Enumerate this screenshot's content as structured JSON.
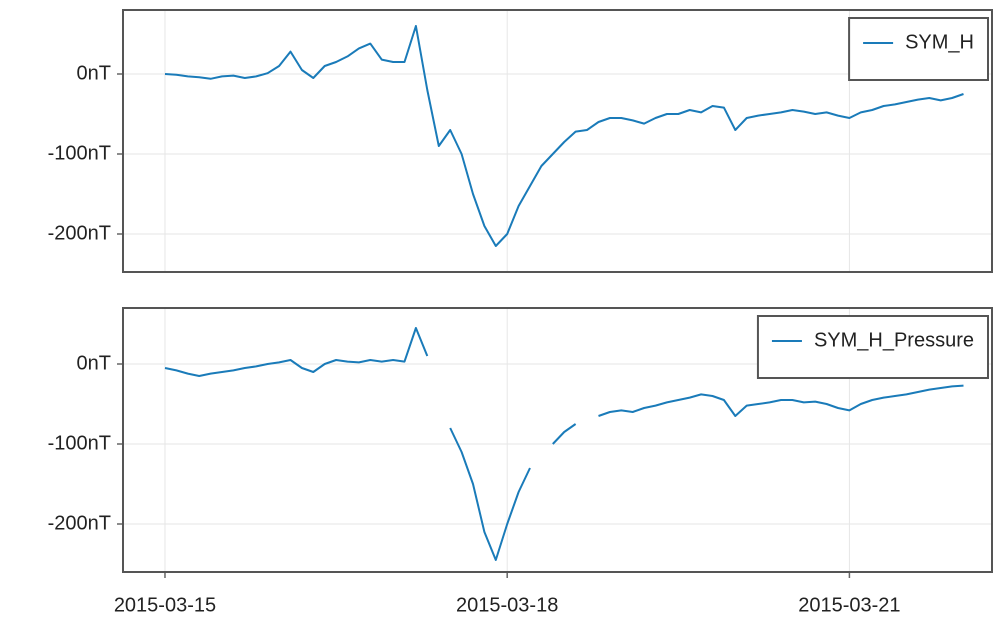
{
  "chart_data": [
    {
      "type": "line",
      "x": [
        0,
        0.1,
        0.2,
        0.3,
        0.4,
        0.5,
        0.6,
        0.7,
        0.8,
        0.9,
        1,
        1.1,
        1.2,
        1.3,
        1.4,
        1.5,
        1.6,
        1.7,
        1.8,
        1.9,
        2,
        2.1,
        2.2,
        2.3,
        2.4,
        2.5,
        2.6,
        2.7,
        2.8,
        2.9,
        3,
        3.1,
        3.2,
        3.3,
        3.4,
        3.5,
        3.6,
        3.7,
        3.8,
        3.9,
        4,
        4.1,
        4.2,
        4.3,
        4.4,
        4.5,
        4.6,
        4.7,
        4.8,
        4.9,
        5,
        5.1,
        5.2,
        5.3,
        5.4,
        5.5,
        5.6,
        5.7,
        5.8,
        5.9,
        6,
        6.1,
        6.2,
        6.3,
        6.4,
        6.5,
        6.6,
        6.7,
        6.8,
        6.9,
        7
      ],
      "series": [
        {
          "name": "SYM_H",
          "color": "#1a7bb9",
          "values": [
            0,
            -1,
            -3,
            -4,
            -6,
            -3,
            -2,
            -5,
            -3,
            1,
            10,
            28,
            5,
            -5,
            10,
            15,
            22,
            32,
            38,
            18,
            15,
            15,
            60,
            -20,
            -90,
            -70,
            -100,
            -150,
            -190,
            -215,
            -200,
            -165,
            -140,
            -115,
            -100,
            -85,
            -72,
            -70,
            -60,
            -55,
            -55,
            -58,
            -62,
            -55,
            -50,
            -50,
            -45,
            -48,
            -40,
            -42,
            -70,
            -55,
            -52,
            -50,
            -48,
            -45,
            -47,
            -50,
            -48,
            -52,
            -55,
            -48,
            -45,
            -40,
            -38,
            -35,
            -32,
            -30,
            -33,
            -30,
            -25
          ]
        }
      ],
      "xlim": [
        -0.368,
        7.25
      ],
      "xticks": [
        0,
        3,
        6
      ],
      "ylim": [
        -247.5,
        80
      ],
      "yticks": [
        {
          "value": 0,
          "label": "0nT"
        },
        {
          "value": -100,
          "label": "-100nT"
        },
        {
          "value": -200,
          "label": "-200nT"
        }
      ],
      "grid": true,
      "legend": "top right"
    },
    {
      "type": "line",
      "x": [
        0,
        0.1,
        0.2,
        0.3,
        0.4,
        0.5,
        0.6,
        0.7,
        0.8,
        0.9,
        1,
        1.1,
        1.2,
        1.3,
        1.4,
        1.5,
        1.6,
        1.7,
        1.8,
        1.9,
        2,
        2.1,
        2.2,
        2.3,
        2.4,
        2.5,
        2.6,
        2.7,
        2.8,
        2.9,
        3,
        3.1,
        3.2,
        3.3,
        3.4,
        3.5,
        3.6,
        3.7,
        3.8,
        3.9,
        4,
        4.1,
        4.2,
        4.3,
        4.4,
        4.5,
        4.6,
        4.7,
        4.8,
        4.9,
        5,
        5.1,
        5.2,
        5.3,
        5.4,
        5.5,
        5.6,
        5.7,
        5.8,
        5.9,
        6,
        6.1,
        6.2,
        6.3,
        6.4,
        6.5,
        6.6,
        6.7,
        6.8,
        6.9,
        7
      ],
      "series": [
        {
          "name": "SYM_H_Pressure",
          "color": "#1a7bb9",
          "values": [
            -5,
            -8,
            -12,
            -15,
            -12,
            -10,
            -8,
            -5,
            -3,
            0,
            2,
            5,
            -5,
            -10,
            0,
            5,
            3,
            2,
            5,
            3,
            5,
            3,
            45,
            10,
            null,
            -80,
            -110,
            -150,
            -210,
            -245,
            -200,
            -160,
            -130,
            null,
            -100,
            -85,
            -75,
            null,
            -65,
            -60,
            -58,
            -60,
            -55,
            -52,
            -48,
            -45,
            -42,
            -38,
            -40,
            -45,
            -65,
            -52,
            -50,
            -48,
            -45,
            -45,
            -48,
            -47,
            -50,
            -55,
            -58,
            -50,
            -45,
            -42,
            -40,
            -38,
            -35,
            -32,
            -30,
            -28,
            -27
          ]
        }
      ],
      "xlim": [
        -0.368,
        7.25
      ],
      "xticks": [
        {
          "value": 0,
          "label": "2015-03-15"
        },
        {
          "value": 3,
          "label": "2015-03-18"
        },
        {
          "value": 6,
          "label": "2015-03-21"
        }
      ],
      "ylim": [
        -260,
        70
      ],
      "yticks": [
        {
          "value": 0,
          "label": "0nT"
        },
        {
          "value": -100,
          "label": "-100nT"
        },
        {
          "value": -200,
          "label": "-200nT"
        }
      ],
      "grid": true,
      "legend": "top right"
    }
  ]
}
